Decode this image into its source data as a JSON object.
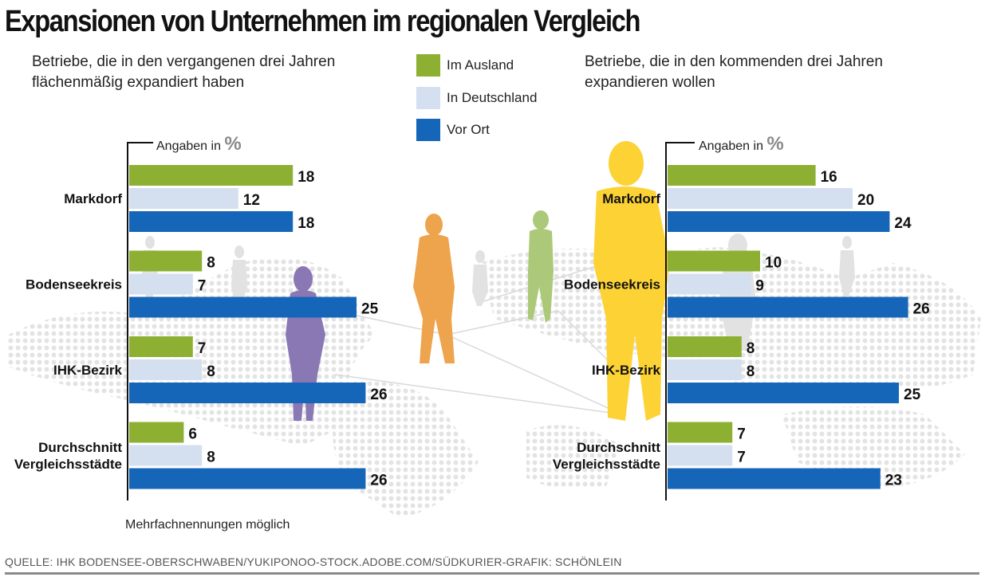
{
  "title": "Expansionen von Unternehmen im regionalen Vergleich",
  "left_subtitle": [
    "Betriebe, die in den vergangenen drei Jahren",
    "flächenmäßig expandiert haben"
  ],
  "right_subtitle": [
    "Betriebe, die in den kommenden drei Jahren",
    "expandieren wollen"
  ],
  "axis_title_prefix": "Angaben in",
  "axis_title_unit": "%",
  "legend": [
    {
      "label": "Im Ausland",
      "color": "#8db033"
    },
    {
      "label": "In Deutschland",
      "color": "#d4dff0"
    },
    {
      "label": "Vor Ort",
      "color": "#1565b8"
    }
  ],
  "footnote": "Mehrfachnennungen möglich",
  "source": "QUELLE: IHK BODENSEE-OBERSCHWABEN/YUKIPONOO-STOCK.ADOBE.COM/SÜDKURIER-GRAFIK: SCHÖNLEIN",
  "chart_data": [
    {
      "type": "bar",
      "orientation": "horizontal",
      "title": "Betriebe, die in den vergangenen drei Jahren flächenmäßig expandiert haben",
      "unit": "%",
      "categories": [
        [
          "Markdorf"
        ],
        [
          "Bodenseekreis"
        ],
        [
          "IHK-Bezirk"
        ],
        [
          "Durchschnitt",
          "Vergleichsstädte"
        ]
      ],
      "series": [
        {
          "name": "Im Ausland",
          "values": [
            18,
            8,
            7,
            6
          ]
        },
        {
          "name": "In Deutschland",
          "values": [
            12,
            7,
            8,
            8
          ]
        },
        {
          "name": "Vor Ort",
          "values": [
            18,
            25,
            26,
            26
          ]
        }
      ]
    },
    {
      "type": "bar",
      "orientation": "horizontal",
      "title": "Betriebe, die in den kommenden drei Jahren expandieren wollen",
      "unit": "%",
      "categories": [
        [
          "Markdorf"
        ],
        [
          "Bodenseekreis"
        ],
        [
          "IHK-Bezirk"
        ],
        [
          "Durchschnitt",
          "Vergleichsstädte"
        ]
      ],
      "series": [
        {
          "name": "Im Ausland",
          "values": [
            16,
            10,
            8,
            7
          ]
        },
        {
          "name": "In Deutschland",
          "values": [
            20,
            9,
            8,
            7
          ]
        },
        {
          "name": "Vor Ort",
          "values": [
            24,
            26,
            25,
            23
          ]
        }
      ]
    }
  ]
}
